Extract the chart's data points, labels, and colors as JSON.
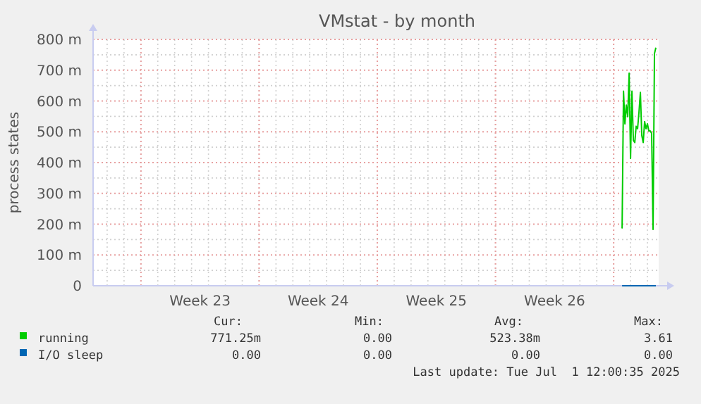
{
  "chart_data": {
    "type": "line",
    "title": "VMstat - by month",
    "ylabel": "process states",
    "xlim": [
      "2025-05-30T04:00",
      "2025-07-02T16:00"
    ],
    "xticks": [
      {
        "value": "2025-06-02",
        "label": null
      },
      {
        "value": "2025-06-05T12:00",
        "label": "Week 23"
      },
      {
        "value": "2025-06-09",
        "label": null
      },
      {
        "value": "2025-06-12T12:00",
        "label": "Week 24"
      },
      {
        "value": "2025-06-16",
        "label": null
      },
      {
        "value": "2025-06-19T12:00",
        "label": "Week 25"
      },
      {
        "value": "2025-06-23",
        "label": null
      },
      {
        "value": "2025-06-26T12:00",
        "label": "Week 26"
      },
      {
        "value": "2025-06-30",
        "label": null
      }
    ],
    "ylim": [
      0,
      800
    ],
    "yticks": [
      0,
      {
        "value": 100,
        "label": "100 m"
      },
      {
        "value": 200,
        "label": "200 m"
      },
      {
        "value": 300,
        "label": "300 m"
      },
      {
        "value": 400,
        "label": "400 m"
      },
      {
        "value": 500,
        "label": "500 m"
      },
      {
        "value": 600,
        "label": "600 m"
      },
      {
        "value": 700,
        "label": "700 m"
      },
      {
        "value": 800,
        "label": "800 m"
      }
    ],
    "grid": true,
    "legend": "bottom left",
    "x": [
      "2025-06-30T12:00",
      "2025-06-30T14:00",
      "2025-06-30T16:00",
      "2025-06-30T18:00",
      "2025-06-30T20:00",
      "2025-06-30T22:00",
      "2025-07-01T00:00",
      "2025-07-01T02:00",
      "2025-07-01T04:00",
      "2025-07-01T06:00",
      "2025-07-01T08:00",
      "2025-07-01T10:00",
      "2025-07-01T12:00",
      "2025-07-01T14:00",
      "2025-07-01T16:00",
      "2025-07-01T18:00",
      "2025-07-01T20:00",
      "2025-07-01T22:00",
      "2025-07-02T00:00",
      "2025-07-02T02:00",
      "2025-07-02T04:00",
      "2025-07-02T06:00",
      "2025-07-02T08:00",
      "2025-07-02T10:00",
      "2025-07-02T12:00"
    ],
    "series": [
      {
        "name": "running",
        "color": "#00cc00",
        "values": [
          186,
          632,
          526,
          587,
          549,
          690,
          414,
          632,
          472,
          465,
          518,
          510,
          564,
          628,
          488,
          465,
          533,
          510,
          526,
          503,
          503,
          495,
          183,
          754,
          773
        ]
      },
      {
        "name": "I/O sleep",
        "color": "#0066b3",
        "values": [
          0,
          0,
          0,
          0,
          0,
          0,
          0,
          0,
          0,
          0,
          0,
          0,
          0,
          0,
          0,
          0,
          0,
          0,
          0,
          0,
          0,
          0,
          0,
          0,
          0
        ]
      }
    ],
    "annotations": [
      "Cur:",
      "Min:",
      "Avg:",
      "Max:",
      "771.25m",
      "0.00",
      "523.38m",
      "3.61",
      "0.00",
      "0.00",
      "0.00",
      "0.00",
      "Last update: Tue Jul  1 12:00:35 2025"
    ]
  }
}
